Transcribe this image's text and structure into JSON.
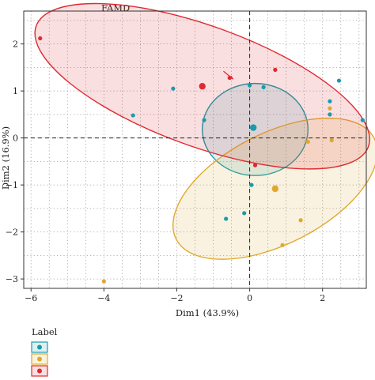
{
  "chart_data": {
    "type": "scatter",
    "title": "FAMD",
    "xlabel": "Dim1 (43.9%)",
    "ylabel": "Dim2 (16.9%)",
    "xlim": [
      -6.2,
      3.2
    ],
    "ylim": [
      -3.2,
      2.7
    ],
    "xticks": [
      -6,
      -4,
      -2,
      0,
      2
    ],
    "yticks": [
      -3,
      -2,
      -1,
      0,
      1,
      2
    ],
    "grid": "dotted",
    "reference_lines": {
      "x": 0,
      "y": 0
    },
    "legend": {
      "title": "Label",
      "placement": "bottom-left"
    },
    "colors": {
      "teal": "#1a9bab",
      "gold": "#e0a82e",
      "red": "#e02a31"
    },
    "series": [
      {
        "color": "#1a9bab",
        "points": [
          [
            -3.2,
            0.48
          ],
          [
            -2.1,
            1.05
          ],
          [
            -1.25,
            0.38
          ],
          [
            0.0,
            1.12
          ],
          [
            0.38,
            1.08
          ],
          [
            2.45,
            1.22
          ],
          [
            2.2,
            0.78
          ],
          [
            3.1,
            0.38
          ],
          [
            2.2,
            0.5
          ],
          [
            0.05,
            -1.0
          ],
          [
            -0.65,
            -1.72
          ],
          [
            -0.15,
            -1.6
          ]
        ],
        "centroid": [
          0.1,
          0.22
        ],
        "ellipse": {
          "center": [
            0.15,
            0.18
          ],
          "rx": 1.45,
          "ry": 0.98,
          "angle_deg": 0
        }
      },
      {
        "color": "#e0a82e",
        "points": [
          [
            2.2,
            0.63
          ],
          [
            1.6,
            -0.08
          ],
          [
            2.25,
            -0.05
          ],
          [
            0.9,
            -2.28
          ],
          [
            1.4,
            -1.75
          ],
          [
            -4.0,
            -3.05
          ]
        ],
        "centroid": [
          0.7,
          -1.08
        ],
        "ellipse": {
          "center": [
            0.7,
            -1.08
          ],
          "rx": 3.05,
          "ry": 1.18,
          "angle_deg": 27
        }
      },
      {
        "color": "#e02a31",
        "points": [
          [
            -5.75,
            2.12
          ],
          [
            -0.55,
            1.28
          ],
          [
            0.7,
            1.45
          ],
          [
            0.15,
            -0.58
          ]
        ],
        "centroid": [
          -1.3,
          1.1
        ],
        "ellipse": {
          "center": [
            -1.3,
            1.1
          ],
          "rx": 4.85,
          "ry": 1.28,
          "angle_deg": -20
        }
      }
    ],
    "annotation_arrow": {
      "from": [
        -0.72,
        1.42
      ],
      "to": [
        -0.45,
        1.25
      ]
    }
  }
}
